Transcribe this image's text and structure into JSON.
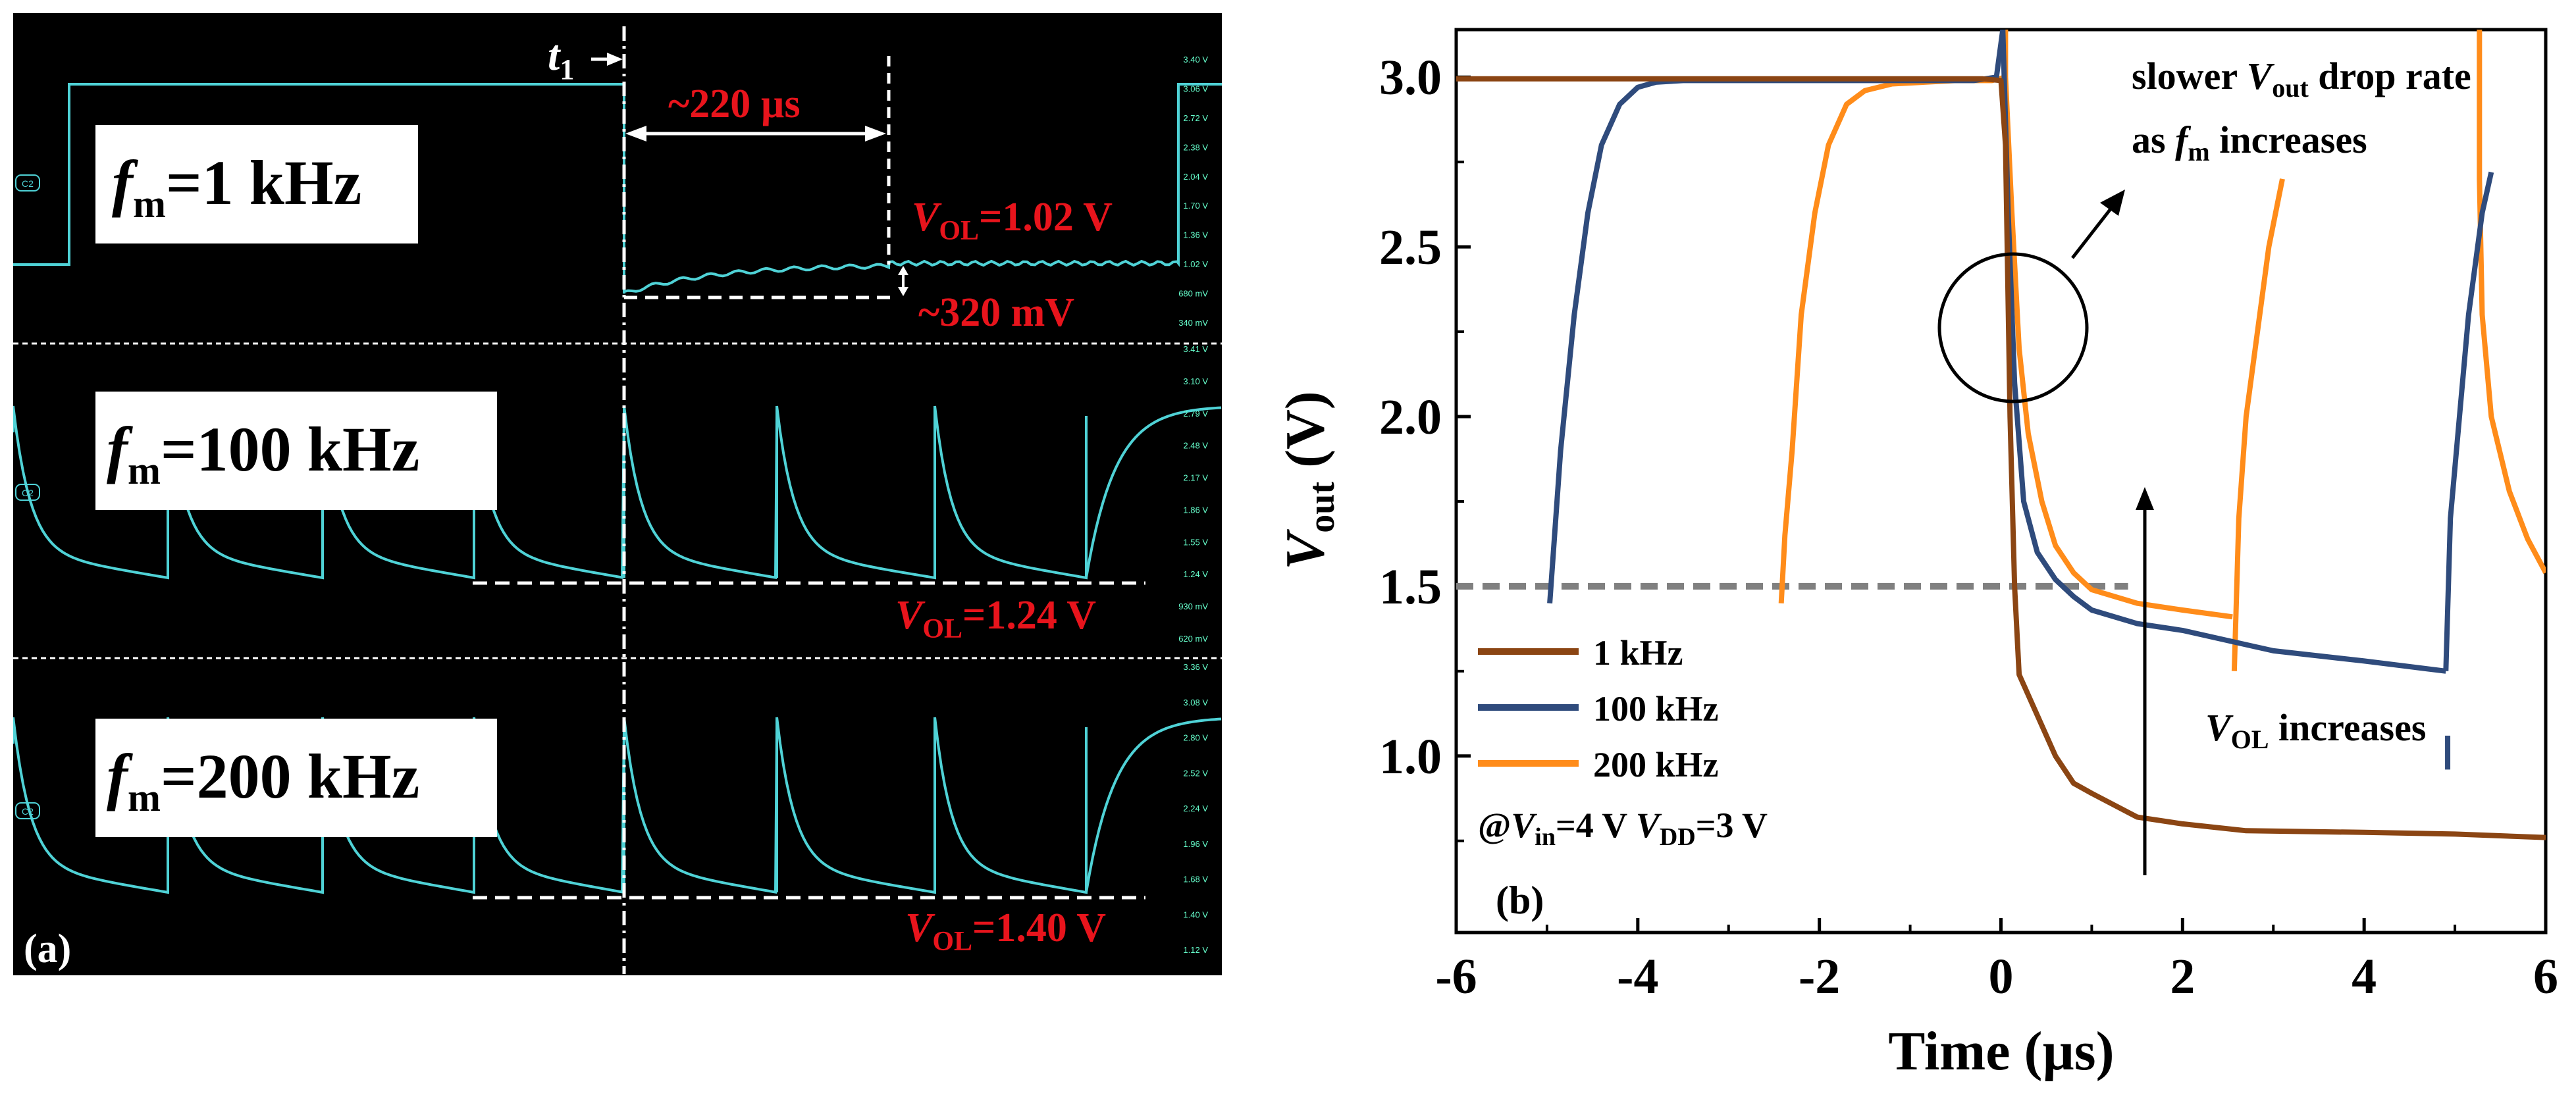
{
  "colors": {
    "trace": "#4fd2d6",
    "red_text": "#e8141c",
    "white": "#ffffff",
    "dash": "#ffffff",
    "brown": "#8b4513",
    "navy": "#2f4b7c",
    "orange": "#ff8c1a",
    "gray_dash": "#808080"
  },
  "panel_a": {
    "label": "(a)",
    "t1_label": "t",
    "t1_sub": "1",
    "delay_label": "~220 µs",
    "rows": [
      {
        "fm_letter": "f",
        "fm_sub": "m",
        "fm_value": "=1 kHz",
        "vol_letter": "V",
        "vol_sub": "OL",
        "vol_value": "=1.02 V",
        "drop_label": "~320 mV",
        "ch_tag": "C2",
        "ticks": [
          "3.40 V",
          "3.06 V",
          "2.72 V",
          "2.38 V",
          "2.04 V",
          "1.70 V",
          "1.36 V",
          "1.02 V",
          "680 mV",
          "340 mV"
        ]
      },
      {
        "fm_letter": "f",
        "fm_sub": "m",
        "fm_value": "=100 kHz",
        "vol_letter": "V",
        "vol_sub": "OL",
        "vol_value": "=1.24 V",
        "ch_tag": "C2",
        "ticks": [
          "3.41 V",
          "3.10 V",
          "2.79 V",
          "2.48 V",
          "2.17 V",
          "1.86 V",
          "1.55 V",
          "1.24 V",
          "930 mV",
          "620 mV"
        ]
      },
      {
        "fm_letter": "f",
        "fm_sub": "m",
        "fm_value": "=200 kHz",
        "vol_letter": "V",
        "vol_sub": "OL",
        "vol_value": "=1.40 V",
        "ch_tag": "C2",
        "ticks": [
          "3.36 V",
          "3.08 V",
          "2.80 V",
          "2.52 V",
          "2.24 V",
          "1.96 V",
          "1.68 V",
          "1.40 V",
          "1.12 V"
        ]
      }
    ]
  },
  "chart_data": {
    "type": "line",
    "panel_label": "(b)",
    "xlabel": "Time (µs)",
    "ylabel_letter": "V",
    "ylabel_sub": "out",
    "ylabel_unit": " (V)",
    "xlim": [
      -6,
      6
    ],
    "ylim": [
      0.48,
      3.14
    ],
    "xticks": [
      -6,
      -4,
      -2,
      0,
      2,
      4,
      6
    ],
    "xtick_labels": [
      "-6",
      "-4",
      "-2",
      "0",
      "2",
      "4",
      "6"
    ],
    "yticks": [
      1.0,
      1.5,
      2.0,
      2.5,
      3.0
    ],
    "ytick_labels": [
      "1.0",
      "1.5",
      "2.0",
      "2.5",
      "3.0"
    ],
    "reference_line": {
      "y": 1.5,
      "x_from": -6,
      "x_to": 1.4
    },
    "series": [
      {
        "name": "1 kHz",
        "color": "#8b4513",
        "segments": [
          [
            [
              -6,
              2.995
            ],
            [
              -1,
              2.995
            ],
            [
              -0.2,
              2.995
            ],
            [
              0,
              2.99
            ],
            [
              0.05,
              2.8
            ],
            [
              0.1,
              2.0
            ],
            [
              0.15,
              1.5
            ],
            [
              0.2,
              1.24
            ],
            [
              0.4,
              1.12
            ],
            [
              0.6,
              1.0
            ],
            [
              0.8,
              0.92
            ],
            [
              1.0,
              0.89
            ],
            [
              1.5,
              0.82
            ],
            [
              2.0,
              0.8
            ],
            [
              2.7,
              0.78
            ],
            [
              4.0,
              0.775
            ],
            [
              5.0,
              0.77
            ],
            [
              6.0,
              0.76
            ]
          ]
        ]
      },
      {
        "name": "100 kHz",
        "color": "#2f4b7c",
        "segments": [
          [
            [
              -4.97,
              1.45
            ],
            [
              -4.93,
              1.6
            ],
            [
              -4.85,
              1.9
            ],
            [
              -4.7,
              2.3
            ],
            [
              -4.55,
              2.6
            ],
            [
              -4.4,
              2.8
            ],
            [
              -4.2,
              2.92
            ],
            [
              -4.0,
              2.97
            ],
            [
              -3.8,
              2.985
            ],
            [
              -3.5,
              2.99
            ],
            [
              -2,
              2.99
            ],
            [
              -0.3,
              2.99
            ],
            [
              -0.05,
              3.0
            ],
            [
              0.02,
              3.14
            ]
          ],
          [
            [
              0.02,
              3.14
            ],
            [
              0.08,
              2.6
            ],
            [
              0.15,
              2.1
            ],
            [
              0.25,
              1.75
            ],
            [
              0.4,
              1.6
            ],
            [
              0.6,
              1.52
            ],
            [
              0.8,
              1.47
            ],
            [
              1.0,
              1.43
            ],
            [
              1.5,
              1.39
            ],
            [
              2.0,
              1.37
            ],
            [
              3.0,
              1.31
            ],
            [
              4.0,
              1.28
            ],
            [
              4.9,
              1.25
            ]
          ],
          [
            [
              4.9,
              1.25
            ],
            [
              4.95,
              1.7
            ],
            [
              5.05,
              2.0
            ],
            [
              5.15,
              2.3
            ],
            [
              5.3,
              2.6
            ],
            [
              5.4,
              2.72
            ]
          ]
        ],
        "tail_dash": {
          "x": 4.92,
          "y_from": 1.06,
          "y_to": 0.96
        }
      },
      {
        "name": "200 kHz",
        "color": "#ff8c1a",
        "segments": [
          [
            [
              -2.42,
              1.45
            ],
            [
              -2.38,
              1.65
            ],
            [
              -2.3,
              1.9
            ],
            [
              -2.2,
              2.3
            ],
            [
              -2.05,
              2.6
            ],
            [
              -1.9,
              2.8
            ],
            [
              -1.7,
              2.92
            ],
            [
              -1.5,
              2.96
            ],
            [
              -1.2,
              2.98
            ],
            [
              -0.5,
              2.99
            ],
            [
              -0.1,
              2.99
            ],
            [
              0.05,
              3.0
            ]
          ],
          [
            [
              0.05,
              3.0
            ],
            [
              0.12,
              2.6
            ],
            [
              0.2,
              2.2
            ],
            [
              0.3,
              1.95
            ],
            [
              0.45,
              1.75
            ],
            [
              0.6,
              1.62
            ],
            [
              0.8,
              1.54
            ],
            [
              1.0,
              1.49
            ],
            [
              1.5,
              1.45
            ],
            [
              2.0,
              1.43
            ],
            [
              2.55,
              1.41
            ]
          ],
          [
            [
              2.57,
              1.25
            ],
            [
              2.62,
              1.7
            ],
            [
              2.7,
              2.0
            ],
            [
              2.8,
              2.2
            ],
            [
              2.95,
              2.5
            ],
            [
              3.1,
              2.7
            ]
          ],
          [
            [
              5.27,
              2.7
            ],
            [
              5.3,
              2.3
            ],
            [
              5.4,
              2.0
            ],
            [
              5.6,
              1.78
            ],
            [
              5.8,
              1.64
            ],
            [
              6.0,
              1.54
            ]
          ]
        ],
        "extra_lines": [
          {
            "x": 0.05,
            "y_from": 3.0,
            "y_to": 3.14
          },
          {
            "x": 5.27,
            "y_from": 2.7,
            "y_to": 3.14
          }
        ]
      }
    ],
    "legend_position": "bottom-left",
    "legend_condition": {
      "prefix": "@",
      "v1_letter": "V",
      "v1_sub": "in",
      "v1_value": "=4 V ",
      "v2_letter": "V",
      "v2_sub": "DD",
      "v2_value": "=3 V"
    },
    "annotations": {
      "slower_line1_pre": "slower ",
      "slower_letter": "V",
      "slower_sub": "out",
      "slower_line1_post": " drop rate",
      "slower_line2_pre": "as ",
      "slower_line2_letter": "f",
      "slower_line2_sub": "m",
      "slower_line2_post": " increases",
      "vol_letter": "V",
      "vol_sub": "OL",
      "vol_post": " increases"
    }
  }
}
